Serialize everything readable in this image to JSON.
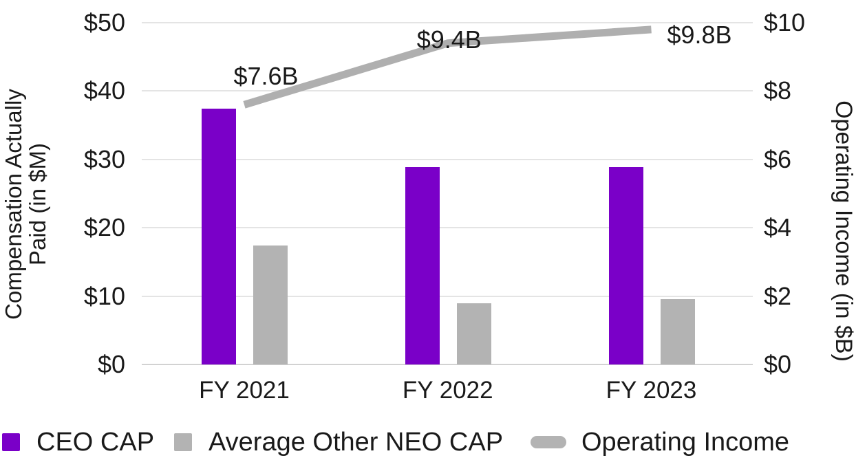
{
  "chart_data": {
    "type": "bar+line combo",
    "categories": [
      "FY 2021",
      "FY 2022",
      "FY 2023"
    ],
    "bar_series": [
      {
        "name": "CEO CAP",
        "axis": "left",
        "color": "#7a00c8",
        "values": [
          37.4,
          28.9,
          28.9
        ]
      },
      {
        "name": "Average Other NEO CAP",
        "axis": "left",
        "color": "#b3b3b3",
        "values": [
          17.4,
          9.0,
          9.6
        ]
      }
    ],
    "line_series": {
      "name": "Operating Income",
      "axis": "right",
      "color": "#afafaf",
      "values": [
        7.6,
        9.4,
        9.8
      ],
      "labels": [
        "$7.6B",
        "$9.4B",
        "$9.8B"
      ]
    },
    "left_axis": {
      "title": "Compensation Actually Paid (in $M)",
      "title_lines": [
        "Compensation Actually",
        "Paid (in $M)"
      ],
      "ticks": [
        "$0",
        "$10",
        "$20",
        "$30",
        "$40",
        "$50"
      ],
      "min": 0,
      "max": 50
    },
    "right_axis": {
      "title": "Operating Income (in $B)",
      "ticks": [
        "$0",
        "$2",
        "$4",
        "$6",
        "$8",
        "$10"
      ],
      "min": 0,
      "max": 10
    },
    "grid": true,
    "legend_position": "bottom"
  },
  "legend": {
    "items": [
      {
        "label": "CEO CAP",
        "swatch": "square",
        "color": "#7a00c8"
      },
      {
        "label": "Average Other NEO CAP",
        "swatch": "square",
        "color": "#b3b3b3"
      },
      {
        "label": "Operating Income",
        "swatch": "pill",
        "color": "#b3b3b3"
      }
    ]
  },
  "colors": {
    "ceo_cap": "#7a00c8",
    "neo_cap": "#b3b3b3",
    "operating_income_line": "#afafaf",
    "gridline": "#e4e4e4",
    "baseline": "#d2d2d2",
    "text": "#1a1a1a",
    "background": "#ffffff"
  }
}
